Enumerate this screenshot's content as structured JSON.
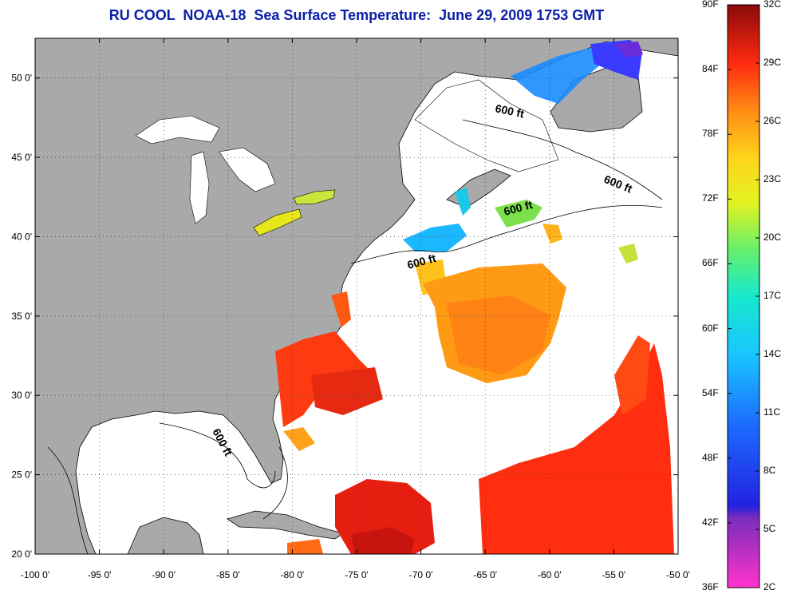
{
  "title": "RU COOL  NOAA-18  Sea Surface Temperature:  June 29, 2009 1753 GMT",
  "map": {
    "lon_range": [
      -100,
      -50
    ],
    "lat_range": [
      20,
      52.5
    ],
    "lon_ticks": [
      "-100 0'",
      "-95 0'",
      "-90 0'",
      "-85 0'",
      "-80 0'",
      "-75 0'",
      "-70 0'",
      "-65 0'",
      "-60 0'",
      "-55 0'",
      "-50 0'"
    ],
    "lat_ticks": [
      "50 0'",
      "45 0'",
      "40 0'",
      "35 0'",
      "30 0'",
      "25 0'",
      "20 0'"
    ],
    "grid": "dotted",
    "land_color": "#a9a9a9",
    "cloud_color": "#ffffff",
    "contour_labels": [
      "600 ft",
      "600 ft",
      "600 ft",
      "600 ft",
      "600 ft"
    ]
  },
  "colorbar": {
    "fahrenheit": [
      "90F",
      "84F",
      "78F",
      "72F",
      "66F",
      "60F",
      "54F",
      "48F",
      "42F",
      "36F"
    ],
    "celsius": [
      "32C",
      "29C",
      "26C",
      "23C",
      "20C",
      "17C",
      "14C",
      "11C",
      "8C",
      "5C",
      "2C"
    ]
  }
}
